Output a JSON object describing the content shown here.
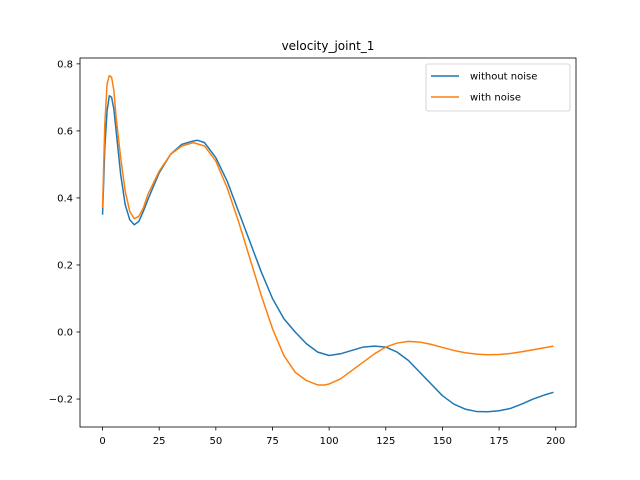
{
  "chart_data": {
    "type": "line",
    "title": "velocity_joint_1",
    "xlabel": "",
    "ylabel": "",
    "xlim": [
      -9.95,
      208.95
    ],
    "ylim": [
      -0.2834,
      0.8175
    ],
    "xticks": [
      0,
      25,
      50,
      75,
      100,
      125,
      150,
      175,
      200
    ],
    "yticks": [
      -0.2,
      0.0,
      0.2,
      0.4,
      0.6,
      0.8
    ],
    "ytick_labels": [
      "−0.2",
      "0.0",
      "0.2",
      "0.4",
      "0.6",
      "0.8"
    ],
    "grid": false,
    "legend_position": "top-right",
    "series": [
      {
        "name": "without noise",
        "color": "#1f77b4",
        "x": [
          0,
          1,
          2,
          3,
          4,
          5,
          6,
          8,
          10,
          12,
          14,
          16,
          18,
          20,
          25,
          30,
          35,
          40,
          42,
          45,
          50,
          55,
          60,
          65,
          70,
          75,
          80,
          85,
          90,
          95,
          100,
          105,
          110,
          115,
          120,
          125,
          130,
          135,
          140,
          145,
          150,
          155,
          160,
          165,
          170,
          175,
          180,
          185,
          190,
          195,
          199
        ],
        "y": [
          0.35,
          0.55,
          0.66,
          0.705,
          0.7,
          0.665,
          0.6,
          0.47,
          0.38,
          0.335,
          0.32,
          0.33,
          0.36,
          0.395,
          0.475,
          0.53,
          0.56,
          0.57,
          0.572,
          0.565,
          0.52,
          0.45,
          0.36,
          0.27,
          0.18,
          0.1,
          0.04,
          0.0,
          -0.035,
          -0.06,
          -0.07,
          -0.065,
          -0.055,
          -0.045,
          -0.042,
          -0.045,
          -0.06,
          -0.085,
          -0.12,
          -0.155,
          -0.19,
          -0.215,
          -0.23,
          -0.237,
          -0.238,
          -0.235,
          -0.228,
          -0.215,
          -0.2,
          -0.188,
          -0.18
        ]
      },
      {
        "name": "with noise",
        "color": "#ff7f0e",
        "x": [
          0,
          1,
          2,
          3,
          4,
          5,
          6,
          8,
          10,
          12,
          14,
          16,
          18,
          20,
          25,
          30,
          35,
          40,
          45,
          50,
          55,
          60,
          65,
          70,
          75,
          80,
          85,
          90,
          95,
          98,
          100,
          105,
          110,
          115,
          120,
          125,
          130,
          135,
          140,
          145,
          150,
          155,
          160,
          165,
          170,
          175,
          180,
          185,
          190,
          195,
          199
        ],
        "y": [
          0.37,
          0.62,
          0.74,
          0.765,
          0.76,
          0.72,
          0.64,
          0.52,
          0.42,
          0.36,
          0.338,
          0.345,
          0.37,
          0.41,
          0.48,
          0.53,
          0.555,
          0.565,
          0.555,
          0.51,
          0.43,
          0.33,
          0.22,
          0.11,
          0.01,
          -0.07,
          -0.12,
          -0.145,
          -0.158,
          -0.158,
          -0.155,
          -0.14,
          -0.115,
          -0.09,
          -0.065,
          -0.045,
          -0.033,
          -0.028,
          -0.03,
          -0.037,
          -0.046,
          -0.055,
          -0.062,
          -0.066,
          -0.068,
          -0.067,
          -0.064,
          -0.059,
          -0.053,
          -0.047,
          -0.042
        ]
      }
    ]
  }
}
